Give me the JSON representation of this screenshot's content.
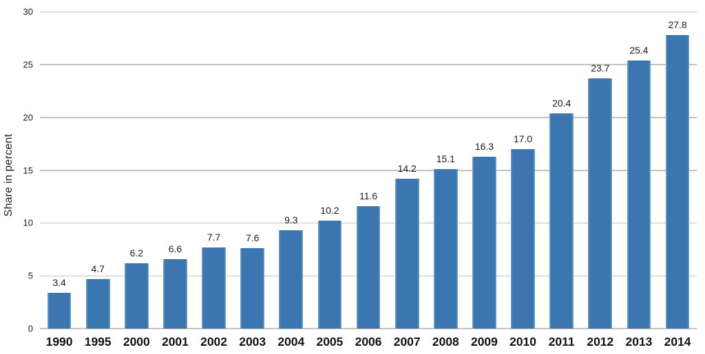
{
  "chart_data": {
    "type": "bar",
    "title": "",
    "xlabel": "",
    "ylabel": "Share in percent",
    "categories": [
      "1990",
      "1995",
      "2000",
      "2001",
      "2002",
      "2003",
      "2004",
      "2005",
      "2006",
      "2007",
      "2008",
      "2009",
      "2010",
      "2011",
      "2012",
      "2013",
      "2014"
    ],
    "values": [
      3.4,
      4.7,
      6.2,
      6.6,
      7.7,
      7.6,
      9.3,
      10.2,
      11.6,
      14.2,
      15.1,
      16.3,
      17.0,
      20.4,
      23.7,
      25.4,
      27.8
    ],
    "value_labels": [
      "3.4",
      "4.7",
      "6.2",
      "6.6",
      "7.7",
      "7.6",
      "9.3",
      "10.2",
      "11.6",
      "14.2",
      "15.1",
      "16.3",
      "17.0",
      "20.4",
      "23.7",
      "25.4",
      "27.8"
    ],
    "ylim": [
      0,
      30
    ],
    "yticks": [
      0,
      5,
      10,
      15,
      20,
      25,
      30
    ],
    "grid": true,
    "legend": false,
    "bar_color": "#3B76B1",
    "bar_edge_color": "#7FA6CE",
    "gridline_color": "#C3C3C3",
    "baseline_color": "#C3C3C3"
  }
}
